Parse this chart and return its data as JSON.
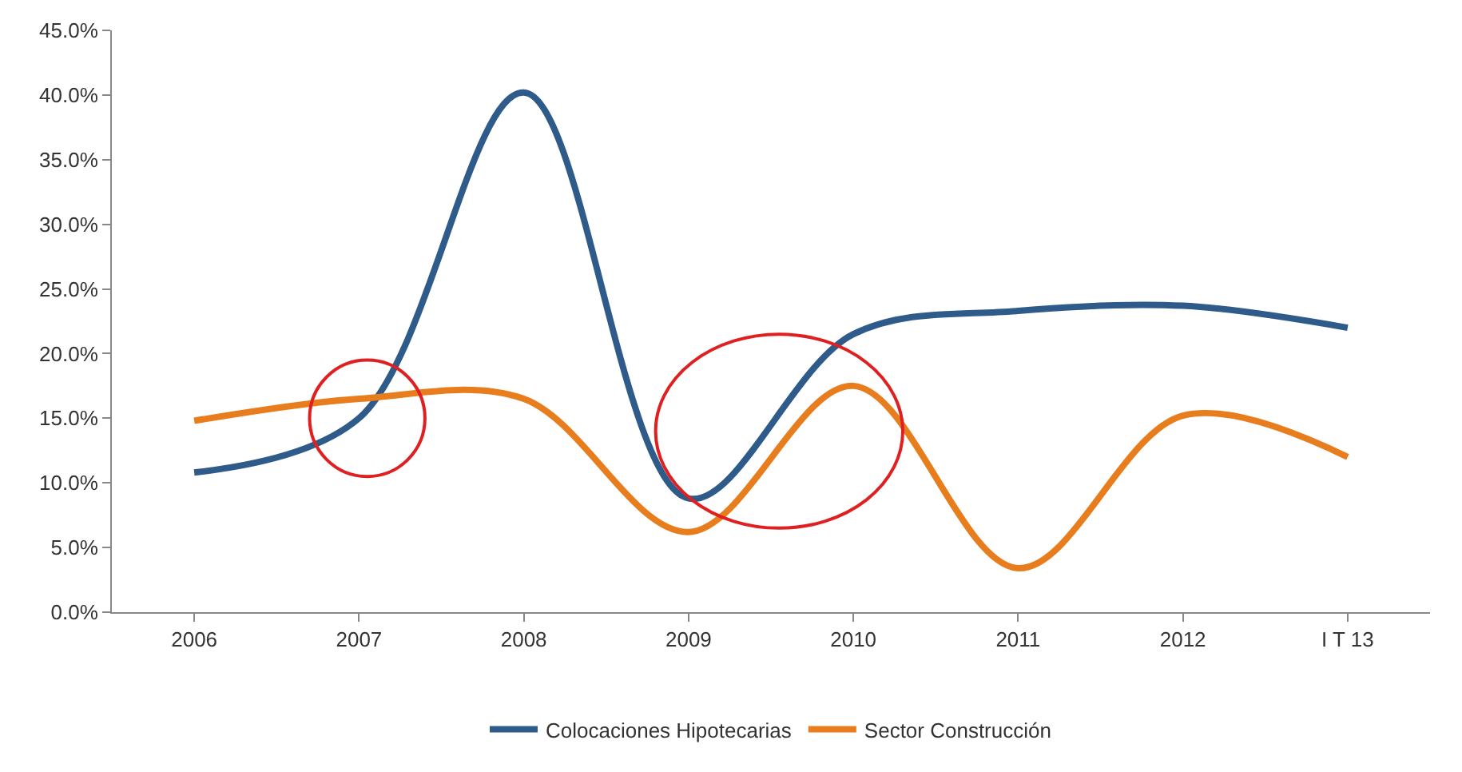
{
  "chart_data": {
    "type": "line",
    "categories": [
      "2006",
      "2007",
      "2008",
      "2009",
      "2010",
      "2011",
      "2012",
      "I T 13"
    ],
    "series": [
      {
        "name": "Colocaciones Hipotecarias",
        "color": "#2e5b8a",
        "values": [
          10.8,
          15.0,
          40.2,
          8.8,
          21.5,
          23.3,
          23.7,
          22.0
        ]
      },
      {
        "name": "Sector Construcción",
        "color": "#e87d1e",
        "values": [
          14.8,
          16.5,
          16.5,
          6.2,
          17.5,
          3.4,
          15.2,
          12.0
        ]
      }
    ],
    "ylim": [
      0,
      45
    ],
    "yticks": [
      {
        "value": 0,
        "label": "0.0%"
      },
      {
        "value": 5,
        "label": "5.0%"
      },
      {
        "value": 10,
        "label": "10.0%"
      },
      {
        "value": 15,
        "label": "15.0%"
      },
      {
        "value": 20,
        "label": "20.0%"
      },
      {
        "value": 25,
        "label": "25.0%"
      },
      {
        "value": 30,
        "label": "30.0%"
      },
      {
        "value": 35,
        "label": "35.0%"
      },
      {
        "value": 40,
        "label": "40.0%"
      },
      {
        "value": 45,
        "label": "45.0%"
      }
    ],
    "legend": "bottom",
    "marker": "none",
    "line_style": "solid"
  }
}
